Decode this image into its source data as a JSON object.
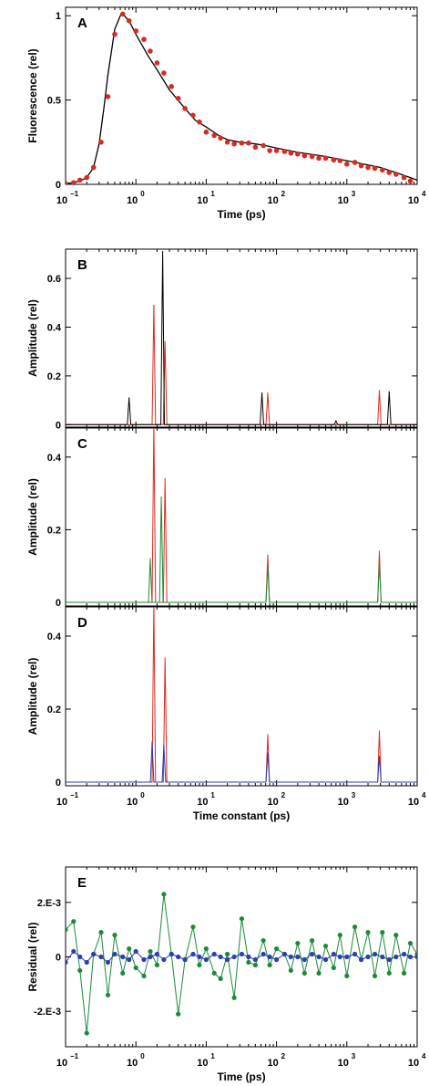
{
  "chart_data": [
    {
      "panel": "A",
      "type": "line",
      "xscale": "log",
      "xlim": [
        0.1,
        10000
      ],
      "ylim": [
        0,
        1.05
      ],
      "xlabel": "Time (ps)",
      "ylabel": "Fluorescence (rel)",
      "yticks": [
        {
          "v": 0,
          "label": "0"
        },
        {
          "v": 0.5,
          "label": "0.5"
        },
        {
          "v": 1,
          "label": "1"
        }
      ],
      "show_x_ticklabels": true,
      "series": [
        {
          "kind": "line",
          "color": "#000000",
          "x": [
            0.1,
            0.13,
            0.16,
            0.2,
            0.25,
            0.3,
            0.35,
            0.4,
            0.5,
            0.6,
            0.65,
            0.8,
            1.0,
            1.5,
            2,
            3,
            5,
            7,
            10,
            15,
            20,
            30,
            50,
            70,
            100,
            200,
            500,
            1000,
            2000,
            3000,
            5000,
            8000,
            10000
          ],
          "y": [
            0.005,
            0.01,
            0.02,
            0.04,
            0.1,
            0.24,
            0.45,
            0.65,
            0.92,
            1.0,
            1.01,
            0.97,
            0.89,
            0.76,
            0.68,
            0.56,
            0.45,
            0.38,
            0.34,
            0.29,
            0.265,
            0.25,
            0.24,
            0.23,
            0.215,
            0.19,
            0.165,
            0.14,
            0.115,
            0.1,
            0.07,
            0.04,
            0.025
          ]
        },
        {
          "kind": "scatter",
          "color": "#d82a20",
          "x": [
            0.1,
            0.13,
            0.16,
            0.2,
            0.25,
            0.32,
            0.4,
            0.5,
            0.65,
            0.8,
            1.0,
            1.3,
            1.6,
            2.0,
            2.5,
            3.2,
            4.0,
            5.0,
            6.5,
            8.0,
            10,
            13,
            16,
            20,
            25,
            32,
            40,
            50,
            65,
            80,
            100,
            130,
            160,
            200,
            250,
            320,
            400,
            500,
            650,
            800,
            1000,
            1300,
            1600,
            2000,
            2500,
            3200,
            4000,
            5000,
            6500,
            8000
          ],
          "y": [
            0.005,
            0.01,
            0.025,
            0.04,
            0.1,
            0.25,
            0.52,
            0.89,
            1.01,
            0.97,
            0.91,
            0.86,
            0.79,
            0.72,
            0.66,
            0.58,
            0.51,
            0.45,
            0.41,
            0.37,
            0.31,
            0.29,
            0.275,
            0.25,
            0.24,
            0.245,
            0.245,
            0.22,
            0.23,
            0.2,
            0.2,
            0.195,
            0.185,
            0.18,
            0.17,
            0.165,
            0.155,
            0.155,
            0.145,
            0.14,
            0.12,
            0.13,
            0.11,
            0.1,
            0.095,
            0.085,
            0.07,
            0.06,
            0.04,
            0.02
          ]
        }
      ]
    },
    {
      "panel": "B",
      "type": "line",
      "xscale": "log",
      "xlim": [
        0.1,
        10000
      ],
      "ylim": [
        -0.01,
        0.72
      ],
      "xlabel": "",
      "ylabel": "Amplitude (rel)",
      "yticks": [
        {
          "v": 0,
          "label": "0"
        },
        {
          "v": 0.2,
          "label": "0.2"
        },
        {
          "v": 0.4,
          "label": "0.4"
        },
        {
          "v": 0.6,
          "label": "0.6"
        }
      ],
      "show_x_ticklabels": false,
      "series": [
        {
          "kind": "peaks",
          "color": "#d82a20",
          "peaks": [
            {
              "x": 1.8,
              "h": 0.49
            },
            {
              "x": 2.6,
              "h": 0.34
            },
            {
              "x": 75,
              "h": 0.13
            },
            {
              "x": 2900,
              "h": 0.14
            }
          ]
        },
        {
          "kind": "peaks",
          "color": "#000000",
          "peaks": [
            {
              "x": 0.8,
              "h": 0.11
            },
            {
              "x": 2.4,
              "h": 0.71
            },
            {
              "x": 62,
              "h": 0.13
            },
            {
              "x": 700,
              "h": 0.015
            },
            {
              "x": 4000,
              "h": 0.135
            }
          ]
        }
      ]
    },
    {
      "panel": "C",
      "type": "line",
      "xscale": "log",
      "xlim": [
        0.1,
        10000
      ],
      "ylim": [
        -0.01,
        0.48
      ],
      "xlabel": "",
      "ylabel": "Amplitude (rel)",
      "yticks": [
        {
          "v": 0,
          "label": "0"
        },
        {
          "v": 0.2,
          "label": "0.2"
        },
        {
          "v": 0.4,
          "label": "0.4"
        }
      ],
      "show_x_ticklabels": false,
      "series": [
        {
          "kind": "peaks",
          "color": "#d82a20",
          "peaks": [
            {
              "x": 1.8,
              "h": 0.49
            },
            {
              "x": 2.6,
              "h": 0.34
            },
            {
              "x": 75,
              "h": 0.13
            },
            {
              "x": 2900,
              "h": 0.14
            }
          ]
        },
        {
          "kind": "peaks",
          "color": "#1a8a3a",
          "peaks": [
            {
              "x": 1.6,
              "h": 0.12
            },
            {
              "x": 2.3,
              "h": 0.29
            },
            {
              "x": 75,
              "h": 0.1
            },
            {
              "x": 2900,
              "h": 0.11
            }
          ]
        }
      ]
    },
    {
      "panel": "D",
      "type": "line",
      "xscale": "log",
      "xlim": [
        0.1,
        10000
      ],
      "ylim": [
        -0.01,
        0.48
      ],
      "xlabel": "Time constant (ps)",
      "ylabel": "Amplitude (rel)",
      "yticks": [
        {
          "v": 0,
          "label": "0"
        },
        {
          "v": 0.2,
          "label": "0.2"
        },
        {
          "v": 0.4,
          "label": "0.4"
        }
      ],
      "show_x_ticklabels": true,
      "series": [
        {
          "kind": "peaks",
          "color": "#d82a20",
          "peaks": [
            {
              "x": 1.8,
              "h": 0.49
            },
            {
              "x": 2.6,
              "h": 0.34
            },
            {
              "x": 75,
              "h": 0.13
            },
            {
              "x": 2900,
              "h": 0.14
            }
          ]
        },
        {
          "kind": "peaks",
          "color": "#2b3fae",
          "peaks": [
            {
              "x": 1.7,
              "h": 0.11
            },
            {
              "x": 2.5,
              "h": 0.1
            },
            {
              "x": 75,
              "h": 0.08
            },
            {
              "x": 2900,
              "h": 0.07
            }
          ]
        }
      ]
    },
    {
      "panel": "E",
      "type": "line",
      "xscale": "log",
      "xlim": [
        0.1,
        10000
      ],
      "ylim": [
        -0.0033,
        0.0033
      ],
      "xlabel": "Time (ps)",
      "ylabel": "Residual (rel)",
      "yticks": [
        {
          "v": -0.002,
          "label": "-2.E-3"
        },
        {
          "v": 0,
          "label": "0"
        },
        {
          "v": 0.002,
          "label": "2.E-3"
        }
      ],
      "show_x_ticklabels": true,
      "series": [
        {
          "kind": "line_markers",
          "color": "#1a8a3a",
          "x": [
            0.1,
            0.13,
            0.16,
            0.2,
            0.25,
            0.32,
            0.4,
            0.5,
            0.65,
            0.8,
            1.0,
            1.3,
            1.6,
            2.0,
            2.5,
            3.2,
            4.0,
            5.0,
            6.5,
            8.0,
            10,
            13,
            16,
            20,
            25,
            32,
            40,
            50,
            65,
            80,
            100,
            130,
            160,
            200,
            250,
            320,
            400,
            500,
            650,
            800,
            1000,
            1300,
            1600,
            2000,
            2500,
            3200,
            4000,
            5000,
            6500,
            8000,
            10000
          ],
          "y": [
            0.001,
            0.0013,
            -0.0005,
            -0.0028,
            0.0001,
            0.0009,
            -0.0014,
            0.0008,
            -0.0006,
            0.0003,
            -0.0004,
            -0.0007,
            0.0002,
            -0.0003,
            0.0023,
            0.0001,
            -0.0021,
            -0.0001,
            0.0011,
            -0.0003,
            0.0003,
            -0.0006,
            -0.0008,
            0.0001,
            -0.0015,
            0.0014,
            -0.0002,
            -0.0003,
            0.0006,
            -0.0003,
            0.0003,
            0.0001,
            -0.0005,
            0.0005,
            -0.0006,
            0.0006,
            -0.0006,
            0.0004,
            -0.0004,
            0.0008,
            -0.0007,
            0.0011,
            -0.0001,
            0.0009,
            -0.0007,
            0.0009,
            -0.0006,
            0.0008,
            -0.0006,
            0.0005,
            0.0001
          ]
        },
        {
          "kind": "line_markers",
          "color": "#2b3fae",
          "x": [
            0.1,
            0.13,
            0.16,
            0.2,
            0.25,
            0.32,
            0.4,
            0.5,
            0.65,
            0.8,
            1.0,
            1.3,
            1.6,
            2.0,
            2.5,
            3.2,
            4.0,
            5.0,
            6.5,
            8.0,
            10,
            13,
            16,
            20,
            25,
            32,
            40,
            50,
            65,
            80,
            100,
            130,
            160,
            200,
            250,
            320,
            400,
            500,
            650,
            800,
            1000,
            1300,
            1600,
            2000,
            2500,
            3200,
            4000,
            5000,
            6500,
            8000,
            10000
          ],
          "y": [
            -0.0002,
            0.0002,
            0.0,
            -0.0002,
            0.0001,
            0.0,
            -0.0002,
            0.0001,
            0.0,
            -0.0001,
            0.0002,
            -0.0001,
            0.0,
            0.0001,
            -0.0001,
            0.0001,
            0.0,
            -0.0001,
            0.0001,
            0.0,
            -0.0001,
            0.0001,
            0.0,
            -0.0001,
            0.0,
            0.0001,
            0.0,
            -0.0001,
            0.0001,
            0.0,
            -0.0001,
            0.0001,
            0.0,
            0.0,
            -0.0001,
            0.0001,
            0.0,
            -0.0001,
            0.0001,
            0.0,
            0.0,
            0.0001,
            -0.0001,
            0.0,
            0.0001,
            0.0,
            -0.0001,
            0.0,
            0.0001,
            0.0,
            0.0
          ]
        }
      ]
    }
  ]
}
